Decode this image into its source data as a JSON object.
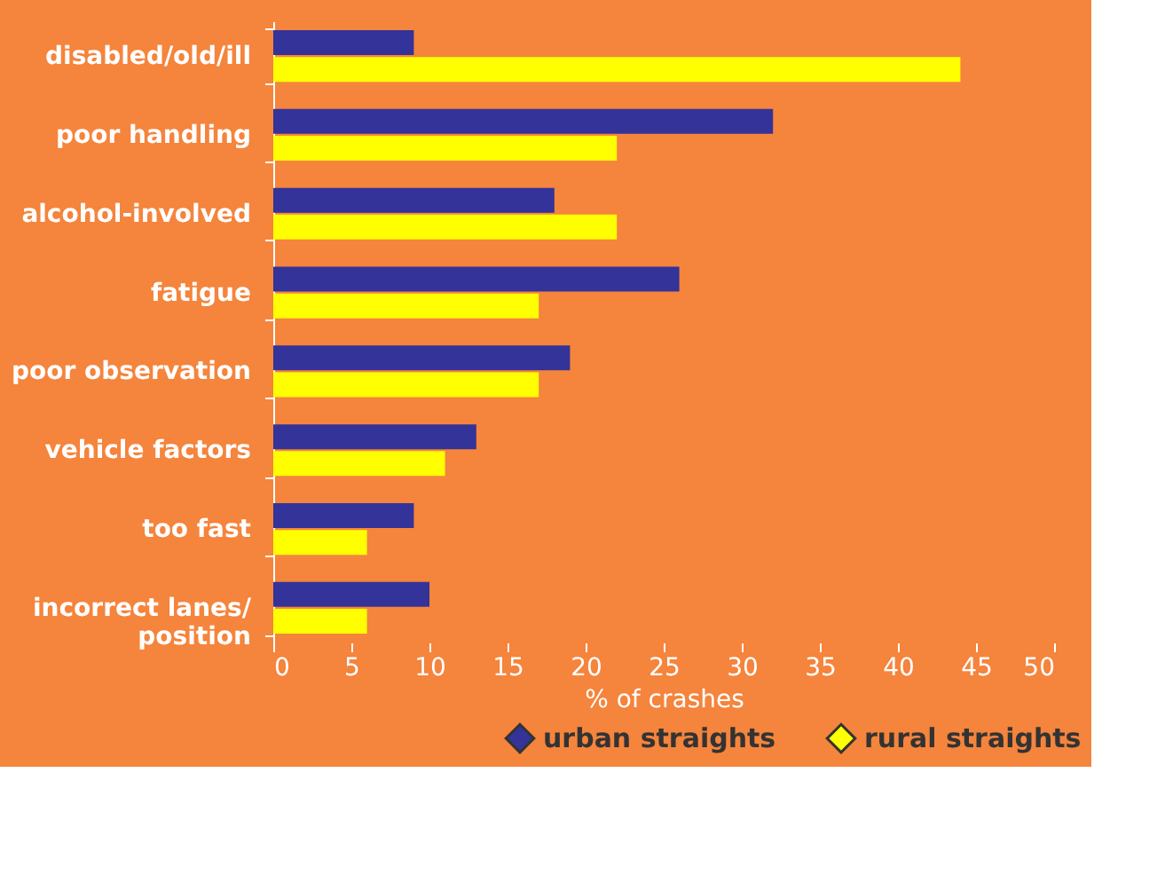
{
  "chart_data": {
    "type": "bar",
    "orientation": "horizontal",
    "xlabel": "% of crashes",
    "categories": [
      "disabled/old/ill",
      "poor handling",
      "alcohol-involved",
      "fatigue",
      "poor observation",
      "vehicle factors",
      "too fast",
      "incorrect lanes/\nposition"
    ],
    "series": [
      {
        "name": "urban straights",
        "color": "#333399",
        "values": [
          9,
          32,
          18,
          26,
          19,
          13,
          9,
          10
        ]
      },
      {
        "name": "rural straights",
        "color": "#ffff00",
        "values": [
          44,
          22,
          22,
          17,
          17,
          11,
          6,
          6
        ]
      }
    ],
    "xlim": [
      0,
      50
    ],
    "xticks": [
      0,
      5,
      10,
      15,
      20,
      25,
      30,
      35,
      40,
      45,
      50
    ],
    "grid": false,
    "legend": "bottom right"
  }
}
